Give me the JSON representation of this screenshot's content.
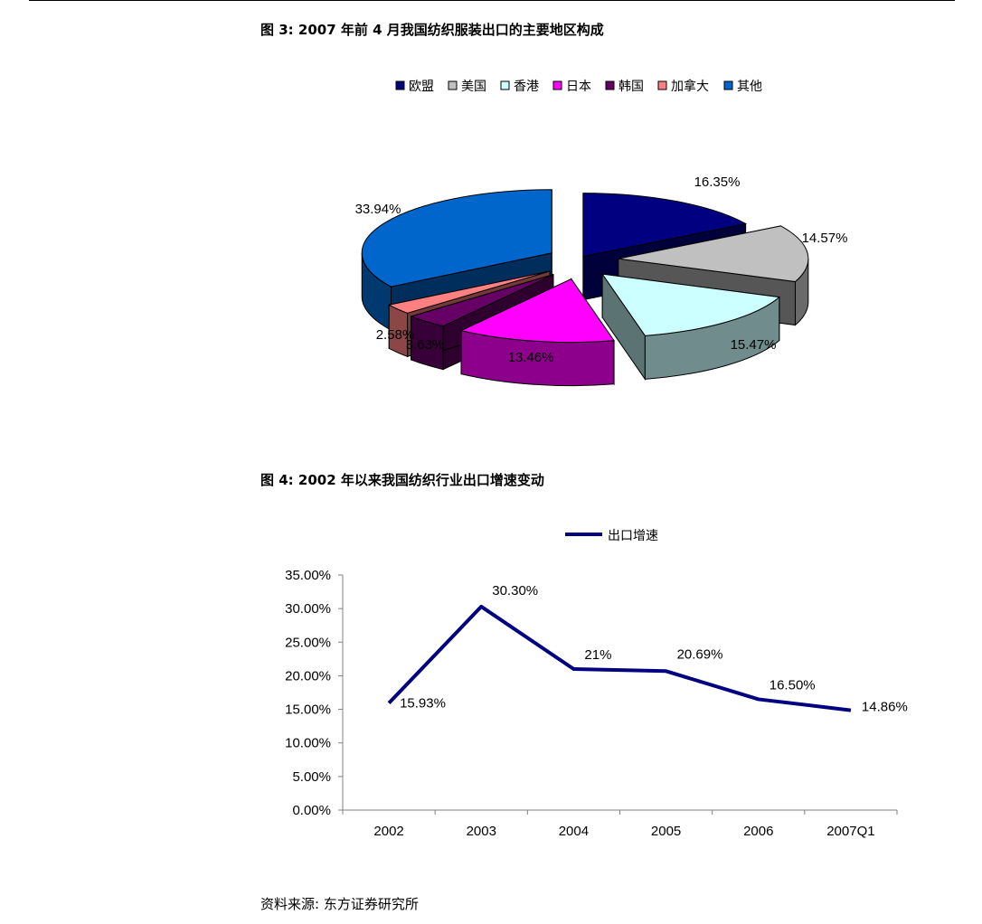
{
  "figures": [
    {
      "title": "图 3:  2007 年前 4 月我国纺织服装出口的主要地区构成"
    },
    {
      "title": "图 4:  2002 年以来我国纺织行业出口增速变动"
    }
  ],
  "source_note": "资料来源:  东方证券研究所",
  "chart_data": [
    {
      "type": "pie",
      "title": "",
      "legend_position": "top",
      "series": [
        {
          "name": "欧盟",
          "value": 16.35,
          "label": "16.35%",
          "color": "#000080"
        },
        {
          "name": "美国",
          "value": 14.57,
          "label": "14.57%",
          "color": "#c0c0c0"
        },
        {
          "name": "香港",
          "value": 15.47,
          "label": "15.47%",
          "color": "#ccffff"
        },
        {
          "name": "日本",
          "value": 13.46,
          "label": "13.46%",
          "color": "#ff00ff"
        },
        {
          "name": "韩国",
          "value": 3.63,
          "label": "3.63%",
          "color": "#660066"
        },
        {
          "name": "加拿大",
          "value": 2.58,
          "label": "2.58%",
          "color": "#ff8080"
        },
        {
          "name": "其他",
          "value": 33.94,
          "label": "33.94%",
          "color": "#0066cc"
        }
      ]
    },
    {
      "type": "line",
      "title": "",
      "legend_position": "top",
      "categories": [
        "2002",
        "2003",
        "2004",
        "2005",
        "2006",
        "2007Q1"
      ],
      "series": [
        {
          "name": "出口增速",
          "values": [
            15.93,
            30.3,
            21.0,
            20.69,
            16.5,
            14.86
          ],
          "labels": [
            "15.93%",
            "30.30%",
            "21%",
            "20.69%",
            "16.50%",
            "14.86%"
          ],
          "color": "#000080"
        }
      ],
      "ylim": [
        0,
        35
      ],
      "yticks": [
        "0.00%",
        "5.00%",
        "10.00%",
        "15.00%",
        "20.00%",
        "25.00%",
        "30.00%",
        "35.00%"
      ],
      "xlabel": "",
      "ylabel": "",
      "grid": false
    }
  ]
}
